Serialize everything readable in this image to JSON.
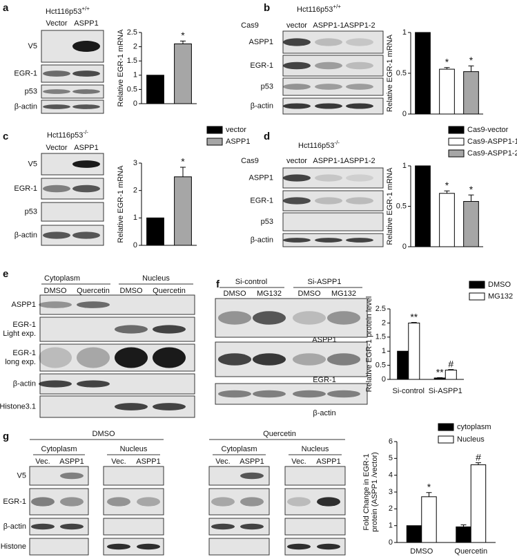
{
  "panels": {
    "a": {
      "letter": "a",
      "cell": "Hct116p53",
      "cell_sup": "+/+",
      "lanes": [
        "Vector",
        "ASPP1"
      ],
      "rows": [
        "V5",
        "EGR-1",
        "p53",
        "β-actin"
      ]
    },
    "b": {
      "letter": "b",
      "cell": "Hct116p53",
      "cell_sup": "+/+",
      "construct": "Cas9",
      "lanes": [
        "vector",
        "ASPP1-1",
        "ASPP1-2"
      ],
      "rows": [
        "ASPP1",
        "EGR-1",
        "p53",
        "β-actin"
      ]
    },
    "c": {
      "letter": "c",
      "cell": "Hct116p53",
      "cell_sup": "-/-",
      "lanes": [
        "Vector",
        "ASPP1"
      ],
      "rows": [
        "V5",
        "EGR-1",
        "p53",
        "β-actin"
      ]
    },
    "d": {
      "letter": "d",
      "cell": "Hct116p53",
      "cell_sup": "-/-",
      "construct": "Cas9",
      "lanes": [
        "vector",
        "ASPP1-1",
        "ASPP1-2"
      ],
      "rows": [
        "ASPP1",
        "EGR-1",
        "p53",
        "β-actin"
      ]
    },
    "e": {
      "letter": "e",
      "groups": [
        "Cytoplasm",
        "Nucleus"
      ],
      "lanes": [
        "DMSO",
        "Quercetin",
        "DMSO",
        "Quercetin"
      ],
      "rows": [
        [
          "ASPP1"
        ],
        [
          "EGR-1",
          "Light exp."
        ],
        [
          "EGR-1",
          "long exp."
        ],
        [
          "β-actin"
        ],
        [
          "Histone3.1"
        ]
      ]
    },
    "f": {
      "letter": "f",
      "groups": [
        "Si-control",
        "Si-ASPP1"
      ],
      "lanes": [
        "DMSO",
        "MG132",
        "DMSO",
        "MG132"
      ],
      "rows": [
        "ASPP1",
        "EGR-1",
        "β-actin"
      ]
    },
    "g": {
      "letter": "g",
      "treatments": [
        "DMSO",
        "Quercetin"
      ],
      "fractions": [
        "Cytoplasm",
        "Nucleus",
        "Cytoplasm",
        "Nucleus"
      ],
      "lanes": [
        "Vec.",
        "ASPP1",
        "Vec.",
        "ASPP1",
        "Vec.",
        "ASPP1",
        "Vec.",
        "ASPP1"
      ],
      "rows": [
        "V5",
        "EGR-1",
        "β-actin",
        "Histone"
      ]
    }
  },
  "chart_data": [
    {
      "type": "bar",
      "ylabel": "Relative EGR-1 mRNA",
      "values": [
        1,
        2.1
      ],
      "errors": [
        null,
        0.1
      ],
      "bar_labels": [
        null,
        "*"
      ],
      "colors": [
        "#000000",
        "#a6a6a6"
      ],
      "ylim": [
        0,
        2.5
      ],
      "yticks": [
        0,
        0.5,
        1,
        1.5,
        2,
        2.5
      ]
    },
    {
      "type": "bar",
      "ylabel": "Relative EGR-1 mRNA",
      "values": [
        1,
        0.55,
        0.52
      ],
      "errors": [
        null,
        0.02,
        0.07
      ],
      "bar_labels": [
        null,
        "*",
        "*"
      ],
      "colors": [
        "#000000",
        "#ffffff",
        "#a6a6a6"
      ],
      "ylim": [
        0,
        1
      ],
      "yticks": [
        0,
        0.5,
        1
      ]
    },
    {
      "type": "bar",
      "ylabel": "Relative EGR-1 mRNA",
      "values": [
        1,
        2.5
      ],
      "errors": [
        null,
        0.35
      ],
      "bar_labels": [
        null,
        "*"
      ],
      "colors": [
        "#000000",
        "#a6a6a6"
      ],
      "legend": [
        "vector",
        "ASPP1"
      ],
      "ylim": [
        0,
        3
      ],
      "yticks": [
        0,
        1,
        2,
        3
      ]
    },
    {
      "type": "bar",
      "ylabel": "Relative EGR-1 mRNA",
      "values": [
        1,
        0.66,
        0.56
      ],
      "errors": [
        null,
        0.03,
        0.08
      ],
      "bar_labels": [
        null,
        "*",
        "*"
      ],
      "colors": [
        "#000000",
        "#ffffff",
        "#a6a6a6"
      ],
      "legend": [
        "Cas9-vector",
        "Cas9-ASPP1-1",
        "Cas9-ASPP1-2"
      ],
      "ylim": [
        0,
        1
      ],
      "yticks": [
        0,
        0.5,
        1
      ]
    },
    {
      "type": "bar",
      "ylabel": "Relative EGR-1 protein level",
      "categories": [
        "Si-control",
        "Si-ASPP1"
      ],
      "series": [
        {
          "name": "DMSO",
          "color": "#000000",
          "values": [
            1,
            0.05
          ],
          "errors": [
            null,
            0.01
          ],
          "bar_labels": [
            null,
            "**"
          ]
        },
        {
          "name": "MG132",
          "color": "#ffffff",
          "values": [
            2.0,
            0.33
          ],
          "errors": [
            0.02,
            0.02
          ],
          "bar_labels": [
            "**",
            "#"
          ]
        }
      ],
      "ylim": [
        0,
        2.5
      ],
      "yticks": [
        0,
        0.5,
        1,
        1.5,
        2,
        2.5
      ]
    },
    {
      "type": "bar",
      "ylabel": [
        "Fold Change  in EGR-1",
        "protein (ASPP1 /vector)"
      ],
      "categories": [
        "DMSO",
        "Quercetin"
      ],
      "series": [
        {
          "name": "cytoplasm",
          "color": "#000000",
          "values": [
            1,
            0.93
          ],
          "errors": [
            null,
            0.12
          ],
          "bar_labels": [
            null,
            null
          ]
        },
        {
          "name": "Nucleus",
          "color": "#ffffff",
          "values": [
            2.72,
            4.62
          ],
          "errors": [
            0.25,
            0.12
          ],
          "bar_labels": [
            "*",
            "#"
          ]
        }
      ],
      "ylim": [
        0,
        6
      ],
      "yticks": [
        0,
        1,
        2,
        3,
        4,
        5,
        6
      ]
    }
  ]
}
